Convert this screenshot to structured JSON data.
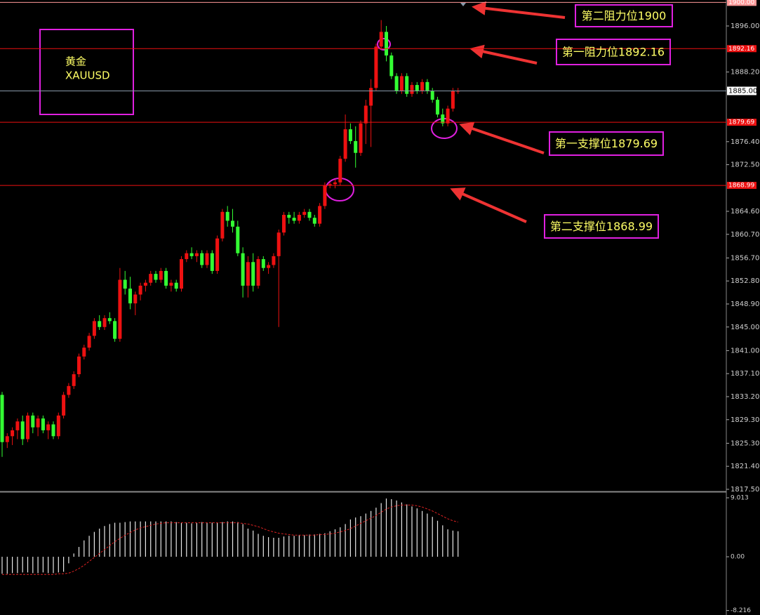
{
  "chart_data": [
    {
      "type": "candlestick",
      "symbol": [
        "黄金",
        "XAUUSD"
      ],
      "up_color": "#ee1111",
      "down_color": "#33ff33",
      "ylim": [
        1817.14,
        1900.4
      ],
      "yticks": [
        {
          "value": 1896,
          "label": "1896.00"
        },
        {
          "value": 1888.2,
          "label": "1888.20"
        },
        {
          "value": 1876.4,
          "label": "1876.40"
        },
        {
          "value": 1872.5,
          "label": "1872.50"
        },
        {
          "value": 1864.6,
          "label": "1864.60"
        },
        {
          "value": 1860.7,
          "label": "1860.70"
        },
        {
          "value": 1856.7,
          "label": "1856.70"
        },
        {
          "value": 1852.8,
          "label": "1852.80"
        },
        {
          "value": 1848.9,
          "label": "1848.90"
        },
        {
          "value": 1845,
          "label": "1845.00"
        },
        {
          "value": 1841,
          "label": "1841.00"
        },
        {
          "value": 1837.1,
          "label": "1837.10"
        },
        {
          "value": 1833.2,
          "label": "1833.20"
        },
        {
          "value": 1829.3,
          "label": "1829.30"
        },
        {
          "value": 1825.3,
          "label": "1825.30"
        },
        {
          "value": 1821.4,
          "label": "1821.40"
        },
        {
          "value": 1817.5,
          "label": "1817.50"
        }
      ],
      "levels": [
        {
          "value": 1900,
          "label": "1900.00",
          "note": "第二阻力位1900",
          "color": "#ff9999"
        },
        {
          "value": 1892.16,
          "label": "1892.16",
          "note": "第一阻力位1892.16",
          "color": "#ee1111"
        },
        {
          "value": 1879.69,
          "label": "1879.69",
          "note": "第一支撑位1879.69",
          "color": "#ee1111"
        },
        {
          "value": 1868.99,
          "label": "1868.99",
          "note": "第二支撑位1868.99",
          "color": "#ee1111"
        }
      ],
      "last_price": {
        "value": 1885,
        "label": "1885.00",
        "color": "#8899aa"
      },
      "ohlc": [
        [
          1833.5,
          1834,
          1823,
          1825.5
        ],
        [
          1825.5,
          1827,
          1824.5,
          1826.5
        ],
        [
          1826.5,
          1828,
          1825,
          1827.5
        ],
        [
          1827.5,
          1829.5,
          1826,
          1829
        ],
        [
          1829,
          1830,
          1825,
          1826
        ],
        [
          1826,
          1830.5,
          1825.5,
          1830
        ],
        [
          1830,
          1830.5,
          1827,
          1828
        ],
        [
          1828,
          1830,
          1826.5,
          1829.5
        ],
        [
          1829.5,
          1830,
          1827,
          1827.5
        ],
        [
          1827.5,
          1829,
          1826,
          1828.5
        ],
        [
          1828.5,
          1829,
          1826,
          1826.5
        ],
        [
          1826.5,
          1830.5,
          1826,
          1830
        ],
        [
          1830,
          1834,
          1829.5,
          1833.5
        ],
        [
          1833.5,
          1835.5,
          1833,
          1835
        ],
        [
          1835,
          1837.5,
          1834.5,
          1837
        ],
        [
          1837,
          1840.5,
          1836.5,
          1840
        ],
        [
          1840,
          1842,
          1839.5,
          1841.5
        ],
        [
          1841.5,
          1844,
          1841,
          1843.5
        ],
        [
          1843.5,
          1846.5,
          1843,
          1846
        ],
        [
          1846,
          1847,
          1844.5,
          1845
        ],
        [
          1845,
          1847,
          1844.5,
          1846.5
        ],
        [
          1846.5,
          1847.5,
          1845.5,
          1846
        ],
        [
          1846,
          1846.5,
          1842.5,
          1843
        ],
        [
          1843,
          1855,
          1842.5,
          1853
        ],
        [
          1853,
          1854.5,
          1850.5,
          1851.5
        ],
        [
          1851.5,
          1853.5,
          1848,
          1849
        ],
        [
          1849,
          1851,
          1847,
          1850.5
        ],
        [
          1850.5,
          1852.5,
          1849.5,
          1852
        ],
        [
          1852,
          1853,
          1851,
          1852.5
        ],
        [
          1852.5,
          1854.5,
          1852,
          1854
        ],
        [
          1854,
          1854.5,
          1852.5,
          1853
        ],
        [
          1853,
          1855,
          1852.5,
          1854.5
        ],
        [
          1854.5,
          1855,
          1851.5,
          1852
        ],
        [
          1852,
          1853,
          1851,
          1852.5
        ],
        [
          1852.5,
          1853,
          1851,
          1851.5
        ],
        [
          1851.5,
          1857,
          1851,
          1856.5
        ],
        [
          1856.5,
          1858,
          1856,
          1857.5
        ],
        [
          1857.5,
          1858.5,
          1856.5,
          1857
        ],
        [
          1857,
          1858,
          1856,
          1857.5
        ],
        [
          1857.5,
          1858,
          1855,
          1855.5
        ],
        [
          1855.5,
          1858,
          1855,
          1857.5
        ],
        [
          1857.5,
          1858,
          1854,
          1854.5
        ],
        [
          1854.5,
          1860.5,
          1854,
          1860
        ],
        [
          1860,
          1865,
          1859.5,
          1864.5
        ],
        [
          1864.5,
          1865.5,
          1862,
          1863
        ],
        [
          1863,
          1865,
          1861,
          1862
        ],
        [
          1862,
          1863,
          1857,
          1857.5
        ],
        [
          1857.5,
          1858.5,
          1850,
          1852
        ],
        [
          1852,
          1857,
          1850,
          1856
        ],
        [
          1856,
          1857.5,
          1851,
          1852
        ],
        [
          1852,
          1857,
          1851.5,
          1856.5
        ],
        [
          1856.5,
          1857,
          1854.5,
          1855
        ],
        [
          1855,
          1856,
          1854,
          1855.5
        ],
        [
          1855.5,
          1857.5,
          1855,
          1857
        ],
        [
          1857,
          1861.5,
          1845,
          1861
        ],
        [
          1861,
          1864.5,
          1860.5,
          1864
        ],
        [
          1864,
          1864.5,
          1862.5,
          1863.5
        ],
        [
          1863.5,
          1864.5,
          1862.5,
          1863
        ],
        [
          1863,
          1864.5,
          1862.5,
          1864
        ],
        [
          1864,
          1865,
          1863.5,
          1864.5
        ],
        [
          1864.5,
          1865,
          1863,
          1863.5
        ],
        [
          1863.5,
          1864,
          1862,
          1862.5
        ],
        [
          1862.5,
          1866,
          1862,
          1865.5
        ],
        [
          1865.5,
          1869.5,
          1865,
          1869
        ],
        [
          1869,
          1869.5,
          1868.5,
          1869.2
        ],
        [
          1869.2,
          1870,
          1868.5,
          1869.5
        ],
        [
          1869.5,
          1874,
          1869,
          1873.5
        ],
        [
          1873.5,
          1881,
          1873,
          1878.5
        ],
        [
          1878.5,
          1879.5,
          1876,
          1876.5
        ],
        [
          1876.5,
          1879,
          1872,
          1874.5
        ],
        [
          1874.5,
          1880,
          1874,
          1879.5
        ],
        [
          1879.5,
          1883.5,
          1876,
          1882.5
        ],
        [
          1882.5,
          1887,
          1875.5,
          1885.5
        ],
        [
          1885.5,
          1893,
          1885,
          1892.5
        ],
        [
          1892.5,
          1897,
          1892,
          1895
        ],
        [
          1895,
          1896,
          1890,
          1891
        ],
        [
          1891,
          1891.5,
          1887,
          1887.5
        ],
        [
          1887.5,
          1888,
          1884.5,
          1885
        ],
        [
          1885,
          1888,
          1884.5,
          1887.5
        ],
        [
          1887.5,
          1888,
          1884,
          1884.5
        ],
        [
          1884.5,
          1886.5,
          1884,
          1886
        ],
        [
          1886,
          1886.5,
          1884.5,
          1885
        ],
        [
          1885,
          1887,
          1884.5,
          1886.5
        ],
        [
          1886.5,
          1887,
          1884.5,
          1885
        ],
        [
          1885,
          1885.5,
          1883,
          1883.5
        ],
        [
          1883.5,
          1884,
          1880.5,
          1881
        ],
        [
          1881,
          1882,
          1879,
          1879.5
        ],
        [
          1879.5,
          1882.5,
          1879,
          1882
        ],
        [
          1882,
          1885.5,
          1881.5,
          1885
        ],
        [
          1885,
          1885.5,
          1884.5,
          1885
        ]
      ]
    },
    {
      "type": "bar",
      "ylim": [
        -8.9,
        9.66
      ],
      "yticks": [
        9.013,
        {
          "value": 0,
          "label": "0.00"
        },
        -8.216
      ],
      "color": "#e8e8e8",
      "values": [
        -2.6,
        -2.6,
        -2.5,
        -2.5,
        -2.4,
        -2.4,
        -2.5,
        -2.5,
        -2.4,
        -2.5,
        -2.5,
        -2.4,
        -2.3,
        -1.0,
        0.5,
        1.5,
        2.5,
        3.2,
        3.8,
        4.3,
        4.7,
        5.0,
        5.2,
        5.2,
        5.3,
        5.4,
        5.4,
        5.4,
        5.4,
        5.4,
        5.4,
        5.4,
        5.4,
        5.4,
        5.3,
        5.2,
        5.2,
        5.1,
        5.2,
        5.3,
        5.2,
        5.2,
        5.2,
        5.3,
        5.4,
        5.4,
        5.3,
        5.0,
        4.3,
        4.0,
        3.5,
        3.2,
        3.0,
        2.9,
        2.9,
        3.1,
        3.2,
        3.2,
        3.3,
        3.3,
        3.4,
        3.4,
        3.5,
        3.6,
        3.9,
        4.2,
        4.5,
        5.0,
        5.7,
        6.0,
        6.2,
        6.6,
        7.0,
        7.5,
        8.2,
        8.9,
        8.8,
        8.6,
        8.3,
        8.0,
        7.7,
        7.4,
        7.0,
        6.6,
        6.1,
        5.5,
        4.8,
        4.2,
        4.0,
        3.9
      ],
      "signal": {
        "color": "#dd2222",
        "values": [
          -2.7,
          -2.7,
          -2.7,
          -2.7,
          -2.7,
          -2.7,
          -2.7,
          -2.7,
          -2.7,
          -2.7,
          -2.7,
          -2.6,
          -2.6,
          -2.5,
          -2.2,
          -1.8,
          -1.3,
          -0.7,
          -0.1,
          0.5,
          1.1,
          1.7,
          2.3,
          2.8,
          3.3,
          3.7,
          4.1,
          4.4,
          4.6,
          4.8,
          5.0,
          5.1,
          5.2,
          5.2,
          5.2,
          5.2,
          5.2,
          5.2,
          5.2,
          5.2,
          5.2,
          5.2,
          5.2,
          5.2,
          5.2,
          5.2,
          5.2,
          5.1,
          5.0,
          4.8,
          4.6,
          4.3,
          4.0,
          3.8,
          3.6,
          3.5,
          3.4,
          3.3,
          3.3,
          3.3,
          3.3,
          3.3,
          3.4,
          3.4,
          3.5,
          3.6,
          3.8,
          4.0,
          4.3,
          4.7,
          5.1,
          5.5,
          5.9,
          6.3,
          6.8,
          7.3,
          7.6,
          7.8,
          7.9,
          7.9,
          7.9,
          7.8,
          7.6,
          7.3,
          7.0,
          6.6,
          6.2,
          5.8,
          5.5,
          5.3
        ]
      }
    }
  ]
}
